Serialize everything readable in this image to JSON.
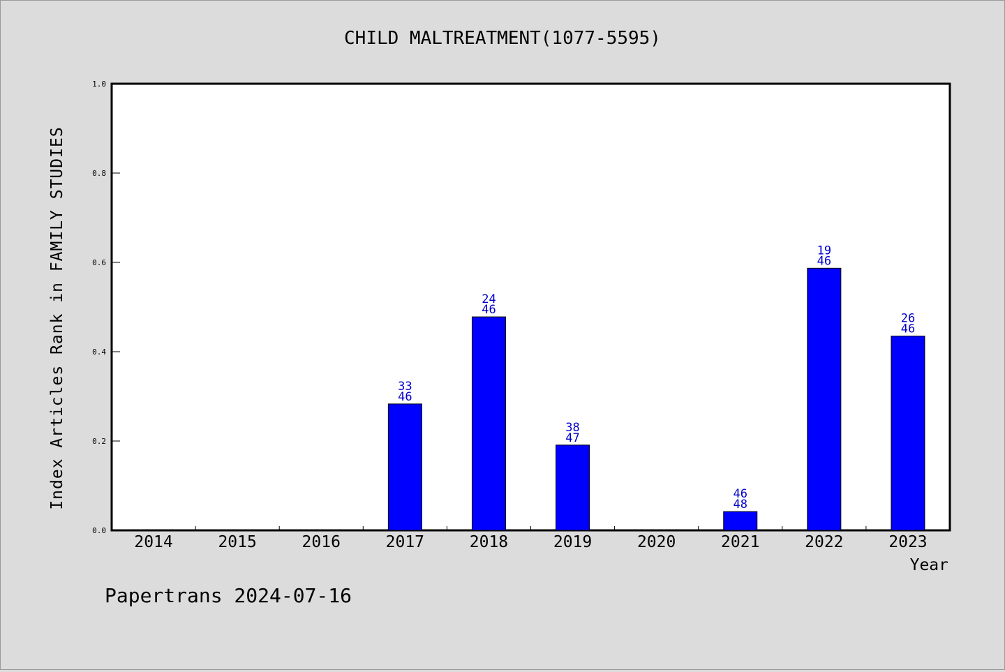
{
  "chart_data": {
    "type": "bar",
    "title": "CHILD MALTREATMENT(1077-5595)",
    "xlabel": "Year",
    "ylabel": "Index Articles Rank in FAMILY STUDIES",
    "footer": "Papertrans 2024-07-16",
    "ylim": [
      0,
      1.0
    ],
    "yticks": [
      "0.0",
      "0.2",
      "0.4",
      "0.6",
      "0.8",
      "1.0"
    ],
    "grid": false,
    "bar_color": "#0000ff",
    "label_color": "#0000cc",
    "categories": [
      "2014",
      "2015",
      "2016",
      "2017",
      "2018",
      "2019",
      "2020",
      "2021",
      "2022",
      "2023"
    ],
    "values": [
      null,
      null,
      null,
      0.283,
      0.478,
      0.191,
      null,
      0.042,
      0.587,
      0.435
    ],
    "labels": [
      null,
      null,
      null,
      [
        "33",
        "46"
      ],
      [
        "24",
        "46"
      ],
      [
        "38",
        "47"
      ],
      null,
      [
        "46",
        "48"
      ],
      [
        "19",
        "46"
      ],
      [
        "26",
        "46"
      ]
    ]
  }
}
